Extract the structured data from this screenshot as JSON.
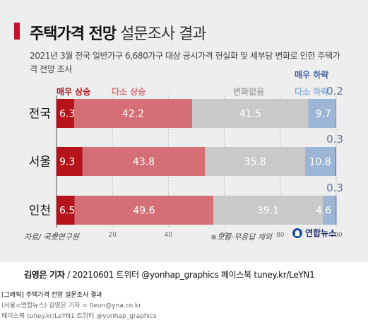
{
  "header": {
    "title_bold": "주택가격 전망",
    "title_light": "설문조사 결과",
    "subtitle": "2021년 3월 전국 일반가구 6,680가구 대상 공시가격 현실화 및 세부담 변화로 인한 주택가격 전망 조사"
  },
  "chart_data": {
    "type": "bar",
    "orientation": "horizontal",
    "stacked": true,
    "categories": [
      "전국",
      "서울",
      "인천"
    ],
    "series": [
      {
        "name": "매우 상승",
        "values": [
          6.3,
          9.3,
          6.5
        ],
        "color": "#b5121b",
        "label_color": "#ffffff"
      },
      {
        "name": "다소 상승",
        "values": [
          42.2,
          43.8,
          49.6
        ],
        "color": "#d46f75",
        "label_color": "#ffffff"
      },
      {
        "name": "변화없음",
        "values": [
          41.5,
          35.8,
          39.1
        ],
        "color": "#c9c9c9",
        "label_color": "#ffffff"
      },
      {
        "name": "다소 하락",
        "values": [
          9.7,
          10.8,
          4.6
        ],
        "color": "#9db6d6",
        "label_color": "#ffffff"
      },
      {
        "name": "매우 하락",
        "values": [
          0.2,
          0.3,
          0.3
        ],
        "color": "#5876a8",
        "label_color": "#5876a8"
      }
    ],
    "xlim": [
      0,
      100
    ],
    "xticks": [
      "0",
      "20",
      "40",
      "60",
      "80",
      "100"
    ],
    "grid": true,
    "legend_position": "top",
    "legend": [
      {
        "label": "매우 상승",
        "color": "#b5121b"
      },
      {
        "label": "다소 상승",
        "color": "#d46f75"
      },
      {
        "label": "변화없음",
        "color": "#a8a8a8"
      },
      {
        "label": "다소 하락",
        "color": "#8fb0d8"
      },
      {
        "label": "매우 하락",
        "color": "#3f63a8"
      }
    ]
  },
  "footer": {
    "source": "자료/ 국토연구원",
    "note": "※모름·무응답 제외",
    "logo": "연합뉴스",
    "credit_name": "김영은 기자",
    "credit_rest": " / 20210601   트위터 @yonhap_graphics  페이스북 tuney.kr/LeYN1",
    "meta1": "[그래픽] 주택가격 전망 설문조사 결과",
    "meta2": "(서울=연합뉴스) 김영은 기자 = 0eun@yna.co.kr",
    "meta3": "페이스북 tuney.kr/LeYN1 트위터 @yonhap_graphics"
  }
}
